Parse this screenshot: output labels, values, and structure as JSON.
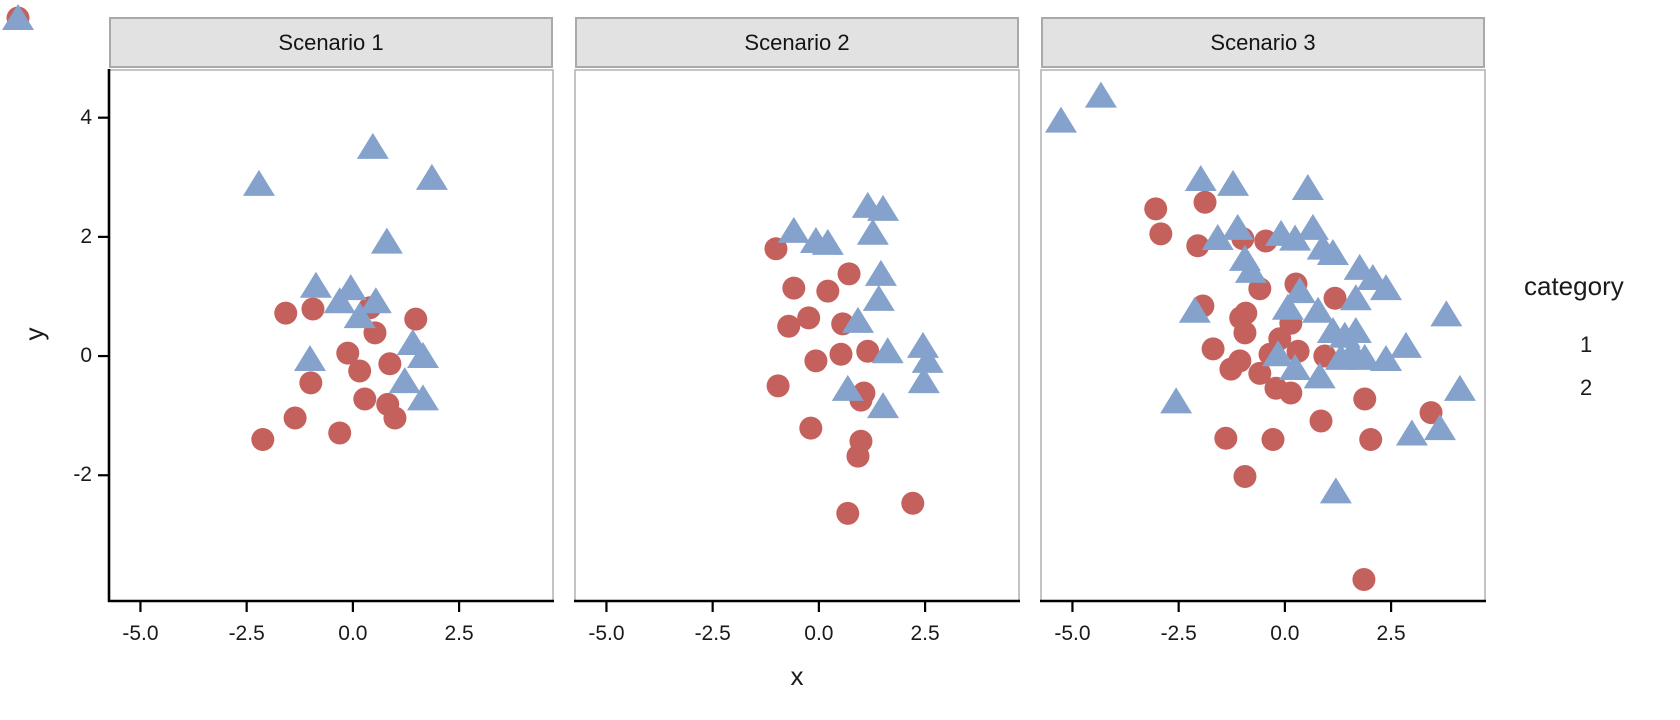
{
  "figure": {
    "x_axis": {
      "title": "x",
      "ticks": [
        "-5.0",
        "-2.5",
        "0.0",
        "2.5"
      ],
      "tick_values": [
        -5.0,
        -2.5,
        0.0,
        2.5
      ]
    },
    "y_axis": {
      "title": "y",
      "ticks": [
        "4",
        "2",
        "0",
        "-2"
      ],
      "tick_values": [
        4,
        2,
        0,
        -2
      ]
    },
    "legend": {
      "title": "category",
      "items": [
        {
          "label": "1",
          "shape": "circle",
          "color": "#C5615D"
        },
        {
          "label": "2",
          "shape": "triangle",
          "color": "#84A2CB"
        }
      ]
    },
    "colors": {
      "category1": "#C5615D",
      "category2": "#84A2CB",
      "strip_bg": "#E2E2E2",
      "strip_border": "#A9A9A9",
      "panel_border": "#B5B5B5",
      "axis_line": "#000000",
      "text": "#1a1a1a"
    }
  },
  "chart_data": {
    "type": "scatter",
    "xlim": [
      -5.74,
      4.71
    ],
    "ylim": [
      -4.11,
      4.8
    ],
    "grid": false,
    "legend_position": "right",
    "facets": [
      {
        "title": "Scenario 1",
        "series": [
          {
            "name": "1",
            "shape": "circle",
            "color": "#C5615D",
            "points": [
              [
                -1.58,
                0.72
              ],
              [
                -0.94,
                0.79
              ],
              [
                0.4,
                0.81
              ],
              [
                0.52,
                0.39
              ],
              [
                1.48,
                0.62
              ],
              [
                -0.12,
                0.05
              ],
              [
                0.16,
                -0.25
              ],
              [
                0.87,
                -0.13
              ],
              [
                -0.99,
                -0.45
              ],
              [
                0.28,
                -0.72
              ],
              [
                0.82,
                -0.81
              ],
              [
                -1.36,
                -1.04
              ],
              [
                0.99,
                -1.04
              ],
              [
                -0.31,
                -1.29
              ],
              [
                -2.12,
                -1.4
              ]
            ]
          },
          {
            "name": "2",
            "shape": "triangle",
            "color": "#84A2CB",
            "points": [
              [
                0.47,
                3.51
              ],
              [
                1.86,
                2.99
              ],
              [
                -2.21,
                2.89
              ],
              [
                0.8,
                1.92
              ],
              [
                -0.87,
                1.18
              ],
              [
                -0.05,
                1.14
              ],
              [
                -0.31,
                0.92
              ],
              [
                0.54,
                0.92
              ],
              [
                0.16,
                0.67
              ],
              [
                1.41,
                0.22
              ],
              [
                1.65,
                0.0
              ],
              [
                -1.01,
                -0.05
              ],
              [
                1.22,
                -0.42
              ],
              [
                1.65,
                -0.71
              ]
            ]
          }
        ]
      },
      {
        "title": "Scenario 2",
        "series": [
          {
            "name": "1",
            "shape": "circle",
            "color": "#C5615D",
            "points": [
              [
                -1.01,
                1.8
              ],
              [
                0.71,
                1.38
              ],
              [
                -0.59,
                1.14
              ],
              [
                0.21,
                1.09
              ],
              [
                -0.24,
                0.64
              ],
              [
                -0.71,
                0.5
              ],
              [
                0.56,
                0.54
              ],
              [
                1.15,
                0.08
              ],
              [
                0.52,
                0.03
              ],
              [
                -0.07,
                -0.08
              ],
              [
                -0.96,
                -0.5
              ],
              [
                1.06,
                -0.62
              ],
              [
                0.99,
                -0.74
              ],
              [
                -0.19,
                -1.21
              ],
              [
                0.99,
                -1.43
              ],
              [
                0.92,
                -1.68
              ],
              [
                0.68,
                -2.64
              ],
              [
                2.21,
                -2.47
              ]
            ]
          },
          {
            "name": "2",
            "shape": "triangle",
            "color": "#84A2CB",
            "points": [
              [
                1.15,
                2.52
              ],
              [
                1.51,
                2.47
              ],
              [
                1.27,
                2.07
              ],
              [
                -0.59,
                2.1
              ],
              [
                -0.07,
                1.93
              ],
              [
                0.21,
                1.9
              ],
              [
                1.46,
                1.38
              ],
              [
                1.41,
                0.96
              ],
              [
                0.92,
                0.59
              ],
              [
                1.62,
                0.08
              ],
              [
                2.45,
                0.17
              ],
              [
                2.56,
                -0.08
              ],
              [
                2.47,
                -0.42
              ],
              [
                0.68,
                -0.55
              ],
              [
                1.51,
                -0.84
              ]
            ]
          }
        ]
      },
      {
        "title": "Scenario 3",
        "series": [
          {
            "name": "1",
            "shape": "circle",
            "color": "#C5615D",
            "points": [
              [
                -3.04,
                2.47
              ],
              [
                -1.88,
                2.58
              ],
              [
                -2.92,
                2.05
              ],
              [
                -2.05,
                1.85
              ],
              [
                -0.99,
                1.97
              ],
              [
                -0.45,
                1.93
              ],
              [
                -0.59,
                1.13
              ],
              [
                0.26,
                1.21
              ],
              [
                1.18,
                0.97
              ],
              [
                -1.93,
                0.84
              ],
              [
                -0.92,
                0.72
              ],
              [
                -1.04,
                0.64
              ],
              [
                -0.94,
                0.39
              ],
              [
                -1.69,
                0.12
              ],
              [
                -1.06,
                -0.08
              ],
              [
                -1.27,
                -0.22
              ],
              [
                -0.59,
                -0.29
              ],
              [
                -0.35,
                0.03
              ],
              [
                -0.12,
                0.29
              ],
              [
                0.14,
                0.55
              ],
              [
                0.31,
                0.08
              ],
              [
                0.94,
                0.0
              ],
              [
                -0.21,
                -0.54
              ],
              [
                0.14,
                -0.62
              ],
              [
                1.88,
                -0.72
              ],
              [
                3.44,
                -0.95
              ],
              [
                -1.39,
                -1.38
              ],
              [
                -0.28,
                -1.4
              ],
              [
                0.85,
                -1.09
              ],
              [
                2.02,
                -1.4
              ],
              [
                -0.94,
                -2.02
              ],
              [
                1.86,
                -3.75
              ]
            ]
          },
          {
            "name": "2",
            "shape": "triangle",
            "color": "#84A2CB",
            "points": [
              [
                -5.27,
                3.95
              ],
              [
                -4.33,
                4.37
              ],
              [
                -1.98,
                2.97
              ],
              [
                -1.22,
                2.89
              ],
              [
                0.54,
                2.82
              ],
              [
                -1.11,
                2.15
              ],
              [
                -1.58,
                1.98
              ],
              [
                -0.09,
                2.05
              ],
              [
                0.24,
                1.97
              ],
              [
                0.66,
                2.15
              ],
              [
                0.89,
                1.82
              ],
              [
                1.13,
                1.73
              ],
              [
                -0.94,
                1.63
              ],
              [
                -0.8,
                1.43
              ],
              [
                1.76,
                1.48
              ],
              [
                2.07,
                1.31
              ],
              [
                2.38,
                1.14
              ],
              [
                0.35,
                1.09
              ],
              [
                1.67,
                0.97
              ],
              [
                0.07,
                0.81
              ],
              [
                0.78,
                0.76
              ],
              [
                -2.12,
                0.76
              ],
              [
                3.8,
                0.7
              ],
              [
                1.13,
                0.42
              ],
              [
                1.41,
                0.34
              ],
              [
                1.67,
                0.42
              ],
              [
                1.6,
                0.08
              ],
              [
                1.88,
                -0.03
              ],
              [
                1.32,
                -0.03
              ],
              [
                2.38,
                -0.05
              ],
              [
                2.85,
                0.17
              ],
              [
                -0.16,
                0.03
              ],
              [
                0.24,
                -0.2
              ],
              [
                0.82,
                -0.34
              ],
              [
                4.12,
                -0.55
              ],
              [
                -2.56,
                -0.76
              ],
              [
                2.99,
                -1.3
              ],
              [
                3.65,
                -1.21
              ],
              [
                1.2,
                -2.27
              ]
            ]
          }
        ]
      }
    ]
  }
}
